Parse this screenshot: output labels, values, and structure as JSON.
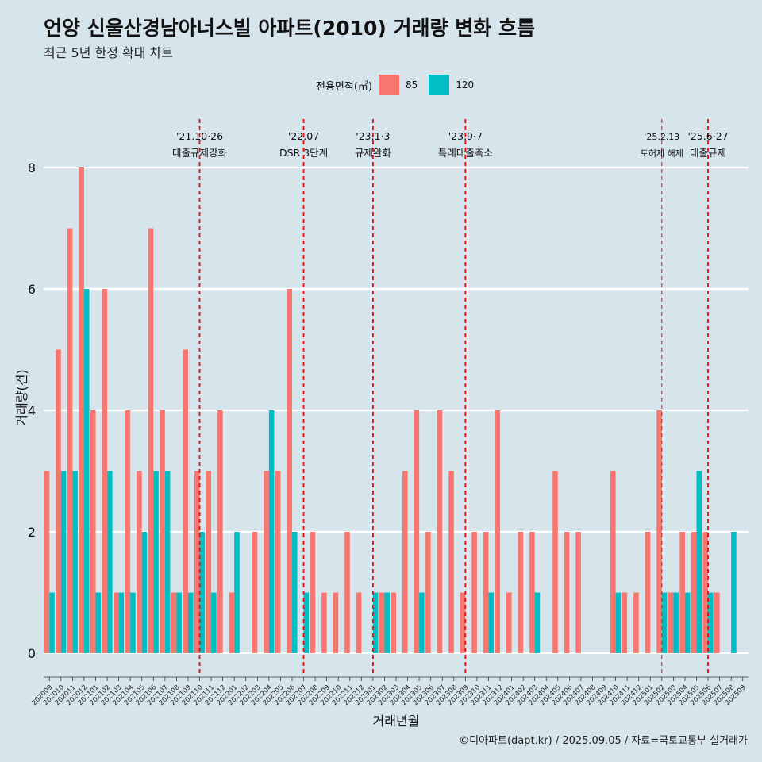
{
  "header": {
    "title": "언양 신울산경남아너스빌 아파트(2010) 거래량 변화 흐름",
    "subtitle": "최근 5년 한정 확대 차트"
  },
  "legend": {
    "title": "전용면적(㎡)",
    "items": [
      {
        "label": "85",
        "color": "#f8766d"
      },
      {
        "label": "120",
        "color": "#00bfc4"
      }
    ]
  },
  "caption": "©디아파트(dapt.kr) / 2025.09.05 / 자료=국토교통부 실거래가",
  "chart_data": {
    "type": "bar",
    "xlabel": "거래년월",
    "ylabel": "거래량(건)",
    "ylim": [
      0,
      8
    ],
    "yticks": [
      0,
      2,
      4,
      6,
      8
    ],
    "grid": true,
    "legend_position": "top",
    "categories": [
      "202009",
      "202010",
      "202011",
      "202012",
      "202101",
      "202102",
      "202103",
      "202104",
      "202105",
      "202106",
      "202107",
      "202108",
      "202109",
      "202110",
      "202111",
      "202112",
      "202201",
      "202202",
      "202203",
      "202204",
      "202205",
      "202206",
      "202207",
      "202208",
      "202209",
      "202210",
      "202211",
      "202212",
      "202301",
      "202302",
      "202303",
      "202304",
      "202305",
      "202306",
      "202307",
      "202308",
      "202309",
      "202310",
      "202311",
      "202312",
      "202401",
      "202402",
      "202403",
      "202404",
      "202405",
      "202406",
      "202407",
      "202408",
      "202409",
      "202410",
      "202411",
      "202412",
      "202501",
      "202502",
      "202503",
      "202504",
      "202505",
      "202506",
      "202507",
      "202508",
      "202509"
    ],
    "series": [
      {
        "name": "85",
        "color": "#f8766d",
        "values": [
          3,
          5,
          7,
          8,
          4,
          6,
          1,
          4,
          3,
          7,
          4,
          1,
          5,
          3,
          3,
          4,
          1,
          0,
          2,
          3,
          3,
          6,
          0,
          2,
          1,
          1,
          2,
          1,
          0,
          1,
          1,
          3,
          4,
          2,
          4,
          3,
          1,
          2,
          2,
          4,
          1,
          2,
          2,
          0,
          3,
          2,
          2,
          0,
          0,
          3,
          1,
          1,
          2,
          4,
          1,
          2,
          2,
          2,
          1,
          0,
          0
        ]
      },
      {
        "name": "120",
        "color": "#00bfc4",
        "values": [
          1,
          3,
          3,
          6,
          1,
          3,
          1,
          1,
          2,
          3,
          3,
          1,
          1,
          2,
          1,
          0,
          2,
          0,
          0,
          4,
          0,
          2,
          1,
          0,
          0,
          0,
          0,
          0,
          1,
          1,
          0,
          0,
          1,
          0,
          0,
          0,
          0,
          0,
          1,
          0,
          0,
          0,
          1,
          0,
          0,
          0,
          0,
          0,
          0,
          1,
          0,
          0,
          0,
          1,
          1,
          1,
          3,
          1,
          0,
          2,
          0
        ]
      }
    ],
    "events": [
      {
        "date": "202110",
        "line1": "'21.10·26",
        "line2": "대출규제강화"
      },
      {
        "date": "202207",
        "line1": "'22.07",
        "line2": "DSR 3단계"
      },
      {
        "date": "202301",
        "line1": "'23.1·3",
        "line2": "규제완화"
      },
      {
        "date": "202309",
        "line1": "'23.9·7",
        "line2": "특례대출축소"
      },
      {
        "date": "202502",
        "line1": "'25.2.13",
        "line2": "토허제 해제"
      },
      {
        "date": "202506",
        "line1": "'25.6·27",
        "line2": "대출규제"
      }
    ]
  }
}
